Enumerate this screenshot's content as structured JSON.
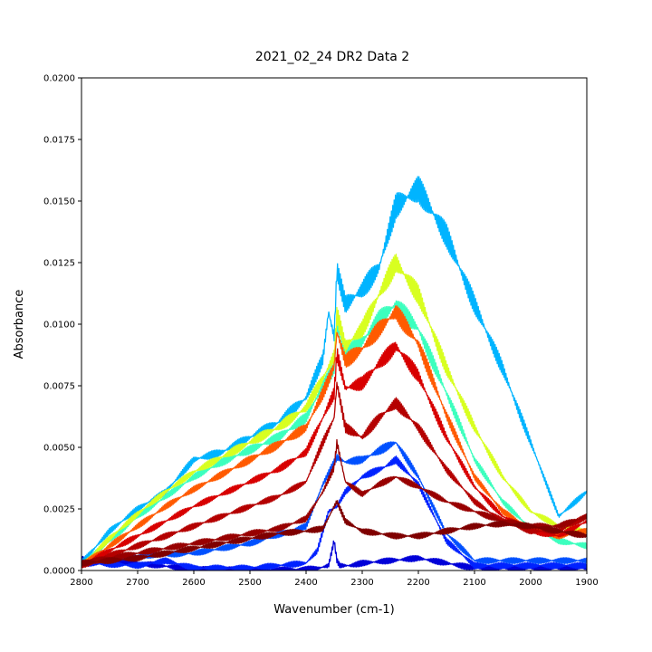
{
  "chart_data": {
    "type": "line",
    "title": "2021_02_24 DR2 Data 2",
    "xlabel": "Wavenumber (cm-1)",
    "ylabel": "Absorbance",
    "xlim": [
      2800,
      1900
    ],
    "ylim": [
      0,
      0.02
    ],
    "x_reversed": true,
    "grid": false,
    "legend": "none",
    "x_ticks": [
      2800,
      2700,
      2600,
      2500,
      2400,
      2300,
      2200,
      2100,
      2000,
      1900
    ],
    "x_tick_labels": [
      "2800",
      "2700",
      "2600",
      "2500",
      "2400",
      "2300",
      "2200",
      "2100",
      "2000",
      "1900"
    ],
    "y_ticks": [
      0,
      0.0025,
      0.005,
      0.0075,
      0.01,
      0.0125,
      0.015,
      0.0175,
      0.02
    ],
    "y_tick_labels": [
      "0.0000",
      "0.0025",
      "0.0050",
      "0.0075",
      "0.0100",
      "0.0125",
      "0.0150",
      "0.0175",
      "0.0200"
    ],
    "colormap": "jet",
    "series_count": 26,
    "series": [
      {
        "color": "#0000d8",
        "x": [
          2800,
          2700,
          2600,
          2500,
          2450,
          2400,
          2380,
          2360,
          2350,
          2345,
          2340,
          2320,
          2300,
          2250,
          2200,
          2150,
          2100
        ],
        "y": [
          0.0005,
          0.0003,
          5e-05,
          2e-05,
          2e-05,
          5e-05,
          8e-05,
          0.0002,
          0.0012,
          0.0004,
          0.0002,
          0.0002,
          0.0003,
          0.0004,
          0.0005,
          0.0003,
          0.0001
        ]
      },
      {
        "color": "#0022ff",
        "x": [
          2800,
          2700,
          2650,
          2600,
          2500,
          2400,
          2380,
          2360,
          2345,
          2330,
          2300,
          2260,
          2240,
          2200,
          2150,
          2100
        ],
        "y": [
          0.0003,
          0.0002,
          0.0004,
          0.0001,
          0.0001,
          0.0003,
          0.0008,
          0.0024,
          0.0026,
          0.0032,
          0.0038,
          0.0042,
          0.0045,
          0.0035,
          0.0012,
          0.0002
        ]
      },
      {
        "color": "#0050ff",
        "x": [
          2800,
          2700,
          2600,
          2500,
          2400,
          2370,
          2345,
          2330,
          2300,
          2250,
          2240,
          2200,
          2150,
          2100
        ],
        "y": [
          0.0004,
          0.0006,
          0.0007,
          0.0011,
          0.0018,
          0.0035,
          0.0046,
          0.0044,
          0.0045,
          0.0051,
          0.0052,
          0.0038,
          0.0015,
          0.0004
        ]
      },
      {
        "color": "#00b4ff",
        "x": [
          2800,
          2750,
          2700,
          2650,
          2600,
          2550,
          2500,
          2450,
          2400,
          2370,
          2360,
          2350,
          2345,
          2330,
          2300,
          2270,
          2240,
          2200,
          2150,
          2100,
          2050,
          2000,
          1950,
          1900
        ],
        "y": [
          0.0003,
          0.0016,
          0.0025,
          0.0032,
          0.0045,
          0.0048,
          0.0054,
          0.006,
          0.007,
          0.0086,
          0.0105,
          0.0095,
          0.0122,
          0.0108,
          0.0114,
          0.0123,
          0.0148,
          0.0155,
          0.0136,
          0.0108,
          0.0082,
          0.0052,
          0.0022,
          0.0032
        ]
      },
      {
        "color": "#3cffbe",
        "x": [
          2800,
          2750,
          2700,
          2650,
          2600,
          2550,
          2500,
          2450,
          2400,
          2370,
          2350,
          2345,
          2330,
          2300,
          2270,
          2240,
          2200,
          2150,
          2100,
          2050,
          2000,
          1950,
          1900
        ],
        "y": [
          0.0002,
          0.0012,
          0.0022,
          0.003,
          0.0038,
          0.0044,
          0.0049,
          0.0054,
          0.0062,
          0.0075,
          0.0082,
          0.0099,
          0.0088,
          0.0093,
          0.0102,
          0.0108,
          0.0098,
          0.0072,
          0.0045,
          0.0028,
          0.0017,
          0.0012,
          0.001
        ]
      },
      {
        "color": "#d8ff20",
        "x": [
          2800,
          2750,
          2700,
          2650,
          2600,
          2550,
          2500,
          2450,
          2400,
          2370,
          2350,
          2345,
          2330,
          2300,
          2270,
          2240,
          2200,
          2150,
          2100,
          2050,
          2000,
          1950,
          1900
        ],
        "y": [
          0.0002,
          0.0013,
          0.0023,
          0.0032,
          0.004,
          0.0046,
          0.0052,
          0.0058,
          0.0066,
          0.0078,
          0.0087,
          0.0104,
          0.0091,
          0.0098,
          0.0112,
          0.0125,
          0.0112,
          0.0082,
          0.0058,
          0.0038,
          0.0024,
          0.0018,
          0.0016
        ]
      },
      {
        "color": "#ff5a00",
        "x": [
          2800,
          2750,
          2700,
          2650,
          2600,
          2550,
          2500,
          2450,
          2400,
          2370,
          2350,
          2345,
          2330,
          2300,
          2270,
          2240,
          2200,
          2150,
          2100,
          2050,
          2000,
          1950,
          1900
        ],
        "y": [
          0.0002,
          0.001,
          0.0018,
          0.0026,
          0.0033,
          0.0039,
          0.0045,
          0.0051,
          0.0058,
          0.0072,
          0.0083,
          0.0097,
          0.0085,
          0.009,
          0.0098,
          0.0105,
          0.0092,
          0.0063,
          0.0038,
          0.0024,
          0.0017,
          0.0014,
          0.0016
        ]
      },
      {
        "color": "#d80000",
        "x": [
          2800,
          2750,
          2700,
          2650,
          2600,
          2550,
          2500,
          2450,
          2400,
          2370,
          2350,
          2345,
          2330,
          2300,
          2270,
          2240,
          2200,
          2150,
          2100,
          2050,
          2000,
          1950,
          1900
        ],
        "y": [
          0.0002,
          0.0008,
          0.0014,
          0.002,
          0.0026,
          0.0031,
          0.0036,
          0.0041,
          0.0048,
          0.0062,
          0.0072,
          0.0088,
          0.0074,
          0.0076,
          0.0084,
          0.0091,
          0.0079,
          0.0054,
          0.0034,
          0.0022,
          0.0016,
          0.0014,
          0.002
        ]
      },
      {
        "color": "#b40000",
        "x": [
          2800,
          2750,
          2700,
          2650,
          2600,
          2550,
          2500,
          2450,
          2400,
          2370,
          2350,
          2345,
          2330,
          2300,
          2270,
          2240,
          2200,
          2150,
          2100,
          2050,
          2000,
          1950,
          1900
        ],
        "y": [
          0.0002,
          0.0006,
          0.001,
          0.0014,
          0.0018,
          0.0022,
          0.0026,
          0.003,
          0.0036,
          0.0052,
          0.0062,
          0.0076,
          0.0058,
          0.0054,
          0.0062,
          0.0068,
          0.0058,
          0.0041,
          0.0028,
          0.002,
          0.0016,
          0.0016,
          0.0022
        ]
      },
      {
        "color": "#980000",
        "x": [
          2800,
          2750,
          2700,
          2650,
          2600,
          2550,
          2500,
          2450,
          2400,
          2370,
          2350,
          2345,
          2330,
          2300,
          2270,
          2240,
          2200,
          2150,
          2100,
          2050,
          2000,
          1950,
          1900
        ],
        "y": [
          0.0003,
          0.0005,
          0.0007,
          0.0009,
          0.0011,
          0.0013,
          0.0015,
          0.0017,
          0.0021,
          0.0032,
          0.0042,
          0.0052,
          0.0036,
          0.0031,
          0.0035,
          0.0038,
          0.0034,
          0.0028,
          0.0024,
          0.002,
          0.0018,
          0.0018,
          0.0022
        ]
      },
      {
        "color": "#7f0000",
        "x": [
          2800,
          2750,
          2700,
          2650,
          2600,
          2550,
          2500,
          2450,
          2400,
          2370,
          2350,
          2345,
          2330,
          2300,
          2270,
          2240,
          2200,
          2150,
          2100,
          2050,
          2000,
          1950,
          1900
        ],
        "y": [
          0.0003,
          0.0004,
          0.0005,
          0.0007,
          0.0009,
          0.0011,
          0.0013,
          0.0015,
          0.0016,
          0.0017,
          0.0026,
          0.0028,
          0.002,
          0.0016,
          0.0015,
          0.0014,
          0.0014,
          0.0016,
          0.0018,
          0.0019,
          0.0018,
          0.0016,
          0.0014
        ]
      }
    ]
  }
}
